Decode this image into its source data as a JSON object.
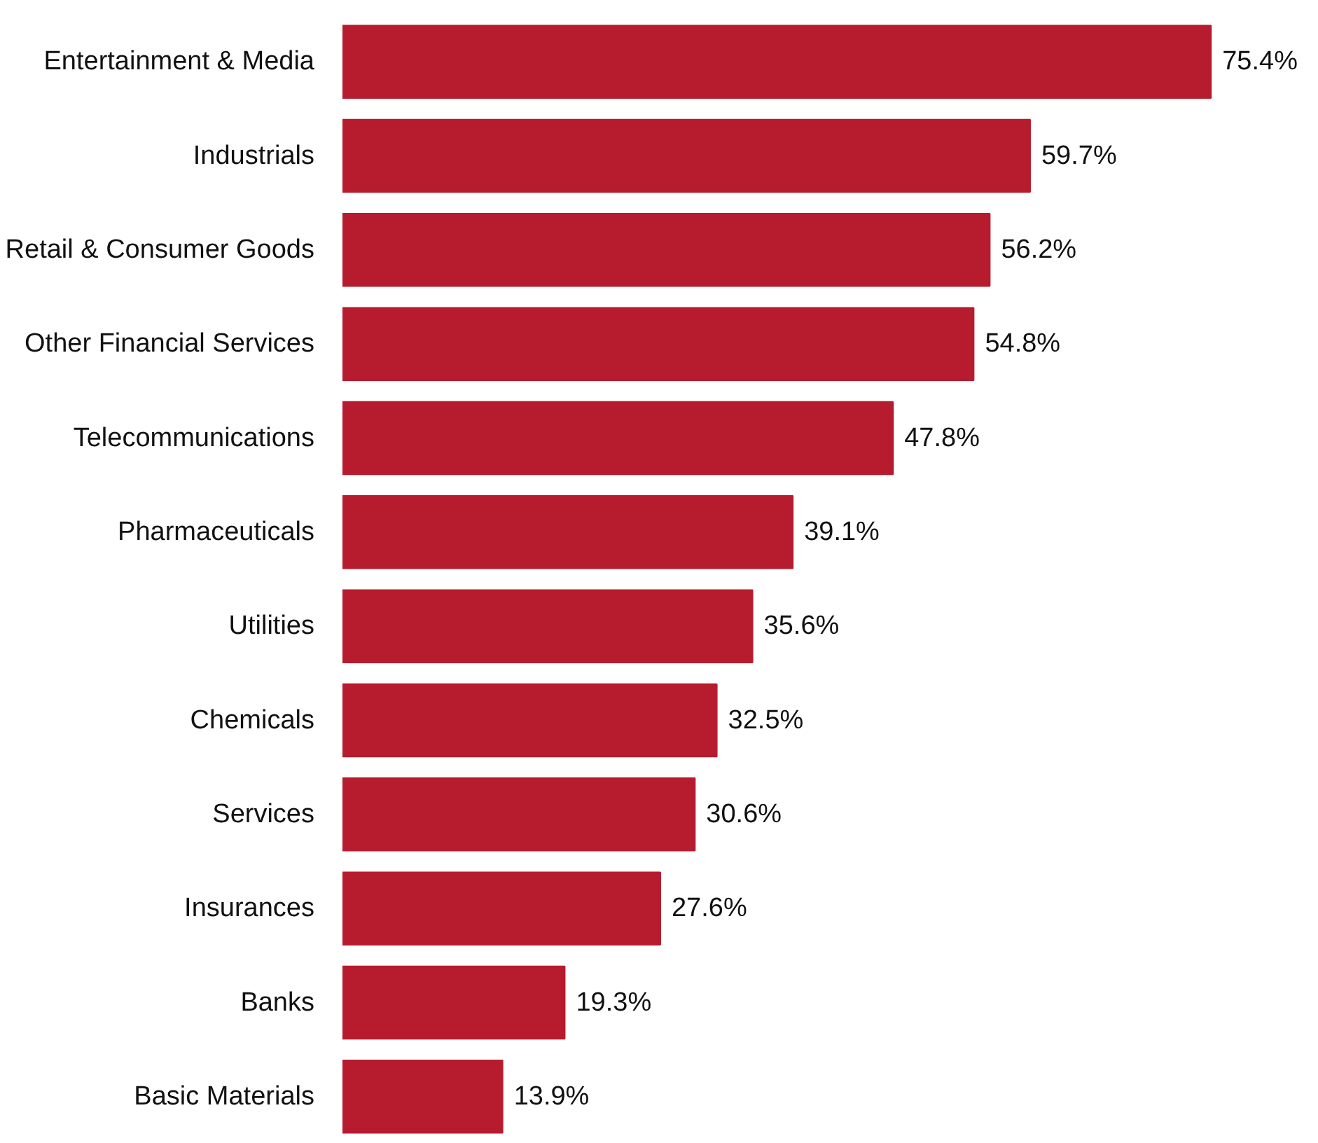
{
  "chart_data": {
    "type": "bar",
    "orientation": "horizontal",
    "categories": [
      "Entertainment & Media",
      "Industrials",
      "Retail & Consumer Goods",
      "Other Financial Services",
      "Telecommunications",
      "Pharmaceuticals",
      "Utilities",
      "Chemicals",
      "Services",
      "Insurances",
      "Banks",
      "Basic Materials"
    ],
    "values": [
      75.4,
      59.7,
      56.2,
      54.8,
      47.8,
      39.1,
      35.6,
      32.5,
      30.6,
      27.6,
      19.3,
      13.9
    ],
    "value_labels": [
      "75.4%",
      "59.7%",
      "56.2%",
      "54.8%",
      "47.8%",
      "39.1%",
      "35.6%",
      "32.5%",
      "30.6%",
      "27.6%",
      "19.3%",
      "13.9%"
    ],
    "color": "#b71c2e"
  }
}
